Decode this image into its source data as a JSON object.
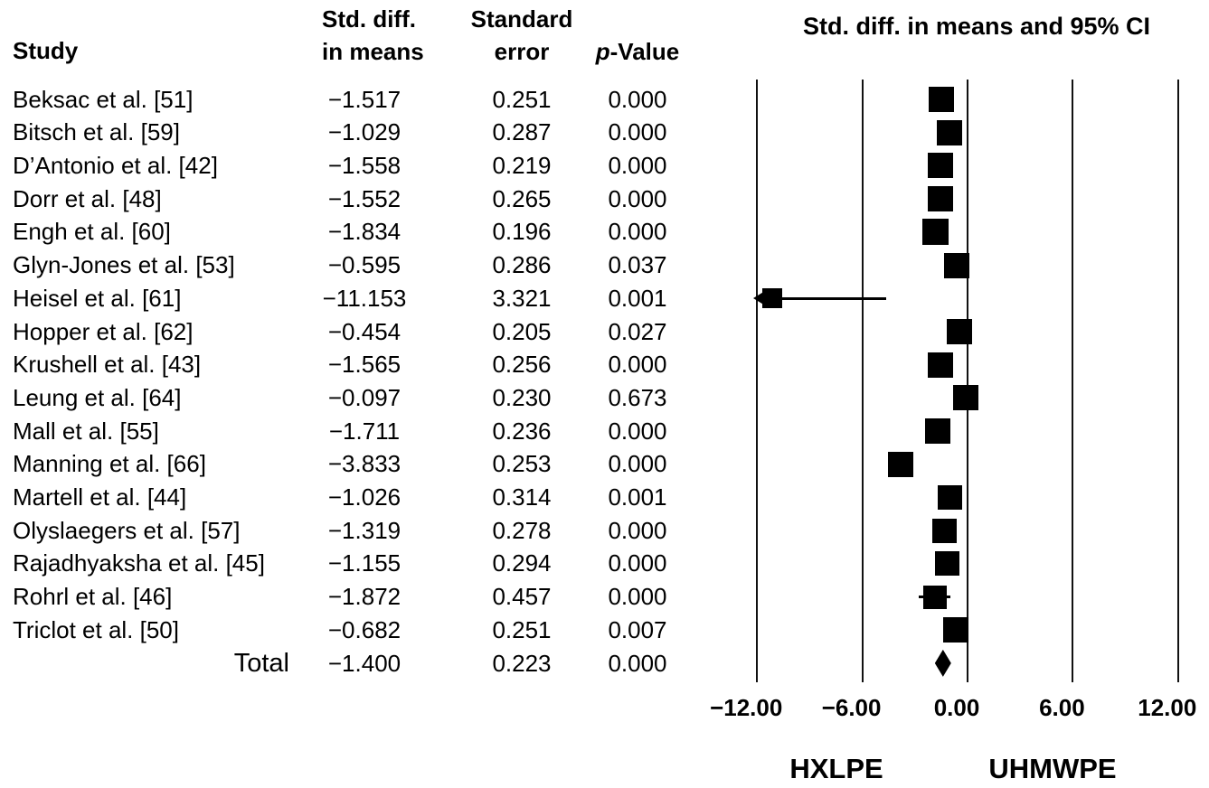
{
  "table": {
    "headers": {
      "study": "Study",
      "std_diff_line1": "Std. diff.",
      "std_diff_line2": "in means",
      "se_line1": "Standard",
      "se_line2": "error",
      "p_italic": "p",
      "p_rest": "-Value"
    }
  },
  "chart_data": {
    "type": "forest",
    "title": "Std. diff. in means and 95% CI",
    "ci_level": "95% CI",
    "xlim": [
      -12,
      12
    ],
    "x_ticks": [
      -12,
      -6,
      0,
      6,
      12
    ],
    "x_tick_labels": [
      "−12.00",
      "−6.00",
      "0.00",
      "6.00",
      "12.00"
    ],
    "left_group_label": "HXLPE",
    "right_group_label": "UHMWPE",
    "grid": true,
    "columns": [
      "Study",
      "Std. diff. in means",
      "Standard error",
      "p-Value"
    ],
    "studies": [
      {
        "name": "Beksac et al. [51]",
        "std_diff": -1.517,
        "se": 0.251,
        "p": 0.0,
        "marker_size": 28
      },
      {
        "name": "Bitsch et al. [59]",
        "std_diff": -1.029,
        "se": 0.287,
        "p": 0.0,
        "marker_size": 28
      },
      {
        "name": "D’Antonio et al. [42]",
        "std_diff": -1.558,
        "se": 0.219,
        "p": 0.0,
        "marker_size": 28
      },
      {
        "name": "Dorr et al. [48]",
        "std_diff": -1.552,
        "se": 0.265,
        "p": 0.0,
        "marker_size": 28
      },
      {
        "name": "Engh et al. [60]",
        "std_diff": -1.834,
        "se": 0.196,
        "p": 0.0,
        "marker_size": 29
      },
      {
        "name": "Glyn-Jones et al. [53]",
        "std_diff": -0.595,
        "se": 0.286,
        "p": 0.037,
        "marker_size": 28
      },
      {
        "name": "Heisel et al. [61]",
        "std_diff": -11.153,
        "se": 3.321,
        "p": 0.001,
        "marker_size": 22
      },
      {
        "name": "Hopper et al. [62]",
        "std_diff": -0.454,
        "se": 0.205,
        "p": 0.027,
        "marker_size": 28
      },
      {
        "name": "Krushell et al. [43]",
        "std_diff": -1.565,
        "se": 0.256,
        "p": 0.0,
        "marker_size": 28
      },
      {
        "name": "Leung et al. [64]",
        "std_diff": -0.097,
        "se": 0.23,
        "p": 0.673,
        "marker_size": 28
      },
      {
        "name": "Mall et al. [55]",
        "std_diff": -1.711,
        "se": 0.236,
        "p": 0.0,
        "marker_size": 28
      },
      {
        "name": "Manning et al. [66]",
        "std_diff": -3.833,
        "se": 0.253,
        "p": 0.0,
        "marker_size": 28
      },
      {
        "name": "Martell et al. [44]",
        "std_diff": -1.026,
        "se": 0.314,
        "p": 0.001,
        "marker_size": 27
      },
      {
        "name": "Olyslaegers et al. [57]",
        "std_diff": -1.319,
        "se": 0.278,
        "p": 0.0,
        "marker_size": 27
      },
      {
        "name": "Rajadhyaksha et al. [45]",
        "std_diff": -1.155,
        "se": 0.294,
        "p": 0.0,
        "marker_size": 27
      },
      {
        "name": "Rohrl et al. [46]",
        "std_diff": -1.872,
        "se": 0.457,
        "p": 0.0,
        "marker_size": 26
      },
      {
        "name": "Triclot et al. [50]",
        "std_diff": -0.682,
        "se": 0.251,
        "p": 0.007,
        "marker_size": 28
      }
    ],
    "total": {
      "name": "Total",
      "std_diff": -1.4,
      "se": 0.223,
      "p": 0.0,
      "marker": "diamond"
    }
  }
}
